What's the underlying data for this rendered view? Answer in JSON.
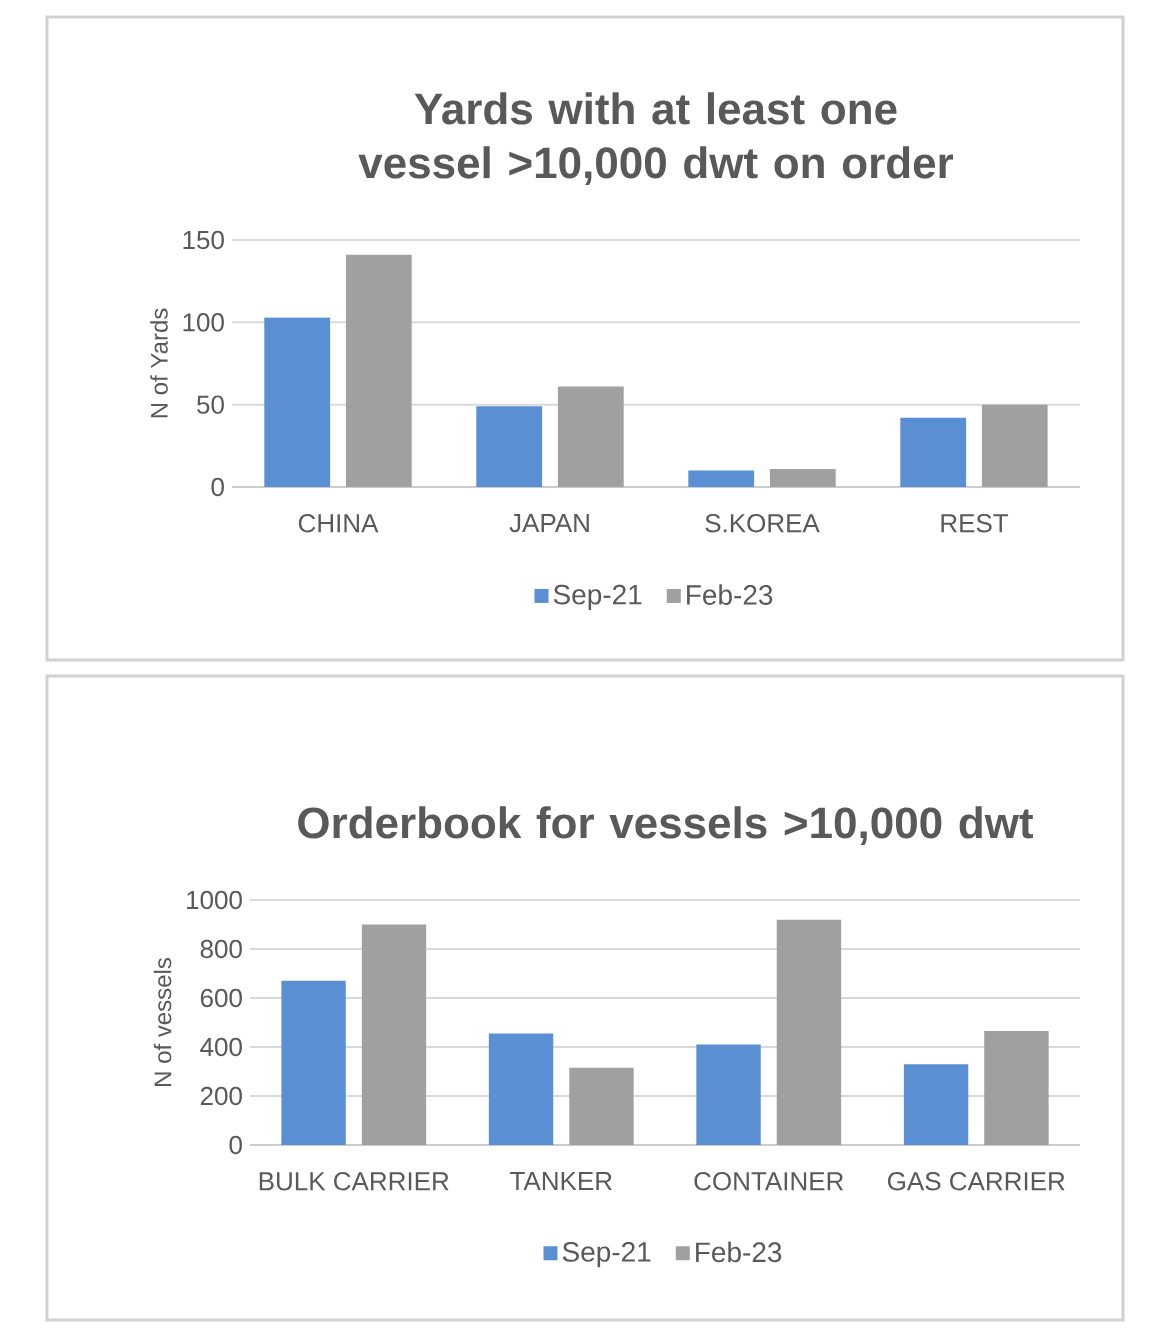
{
  "chart_data": [
    {
      "type": "bar",
      "title": "Yards with at least one vessel >10,000 dwt on order",
      "ylabel": "N of Yards",
      "categories": [
        "CHINA",
        "JAPAN",
        "S.KOREA",
        "REST"
      ],
      "series": [
        {
          "name": "Sep-21",
          "color": "#5b8fd4",
          "values": [
            103,
            49,
            10,
            42
          ]
        },
        {
          "name": "Feb-23",
          "color": "#a0a0a0",
          "values": [
            141,
            61,
            11,
            50
          ]
        }
      ],
      "ylim": [
        0,
        150
      ],
      "yticks": [
        0,
        50,
        100,
        150
      ],
      "grid": "y",
      "legend": "bottom"
    },
    {
      "type": "bar",
      "title": "Orderbook for vessels >10,000 dwt",
      "ylabel": "N of vessels",
      "categories": [
        "BULK CARRIER",
        "TANKER",
        "CONTAINER",
        "GAS CARRIER"
      ],
      "series": [
        {
          "name": "Sep-21",
          "color": "#5b8fd4",
          "values": [
            670,
            455,
            410,
            330
          ]
        },
        {
          "name": "Feb-23",
          "color": "#a0a0a0",
          "values": [
            900,
            315,
            920,
            465
          ]
        }
      ],
      "ylim": [
        0,
        1000
      ],
      "yticks": [
        0,
        200,
        400,
        600,
        800,
        1000
      ],
      "grid": "y",
      "legend": "bottom"
    }
  ]
}
